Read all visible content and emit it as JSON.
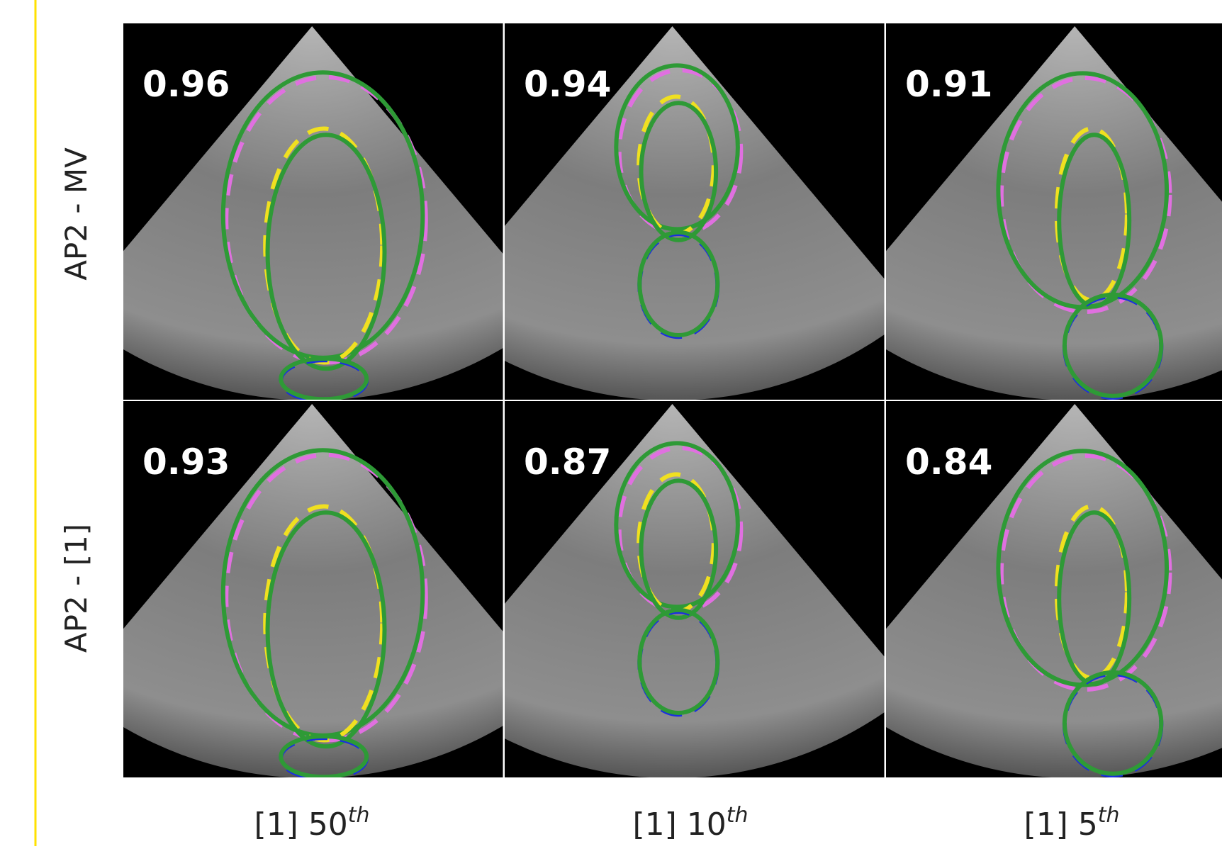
{
  "row_labels": [
    "AP2 - MV",
    "AP2 - [1]"
  ],
  "column_labels": [
    {
      "text": "[1] 50",
      "superscript": "th"
    },
    {
      "text": "[1] 10",
      "superscript": "th"
    },
    {
      "text": "[1] 5",
      "superscript": "th"
    }
  ],
  "scores": [
    [
      "0.96",
      "0.94",
      "0.91"
    ],
    [
      "0.93",
      "0.87",
      "0.84"
    ]
  ]
}
